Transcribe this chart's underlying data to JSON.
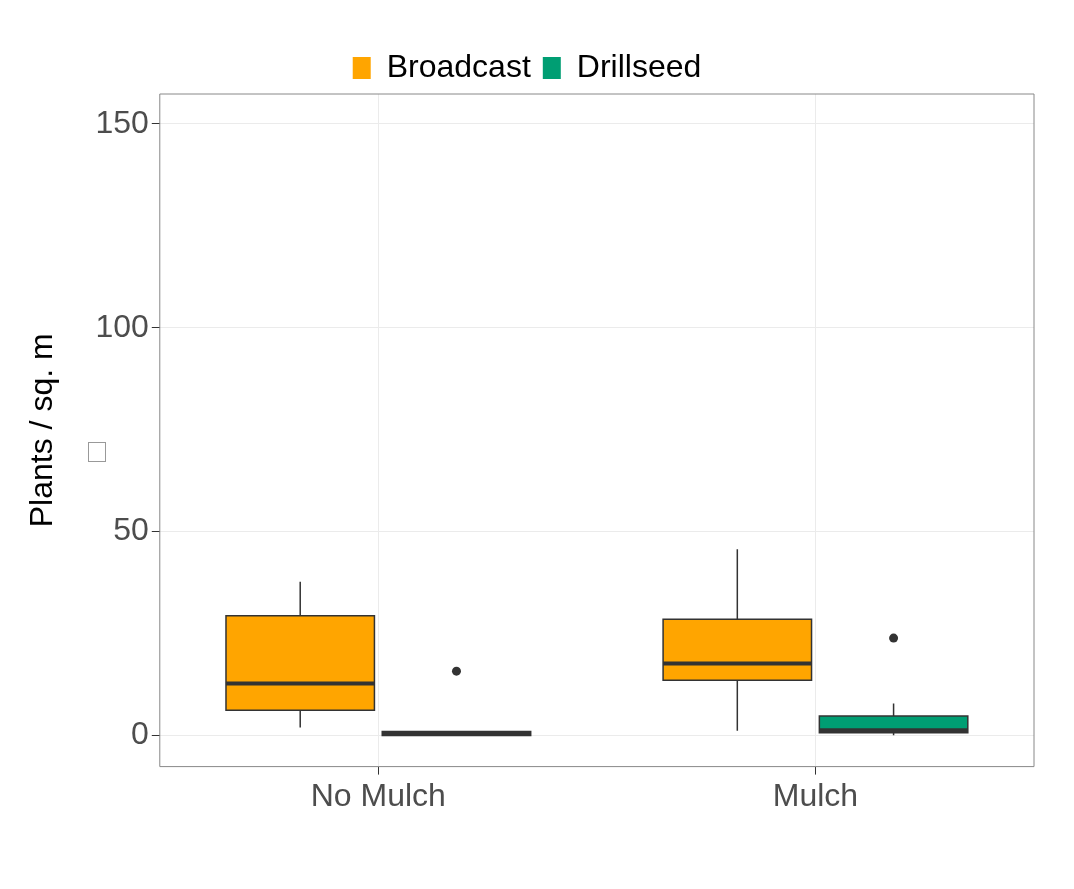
{
  "chart_data": {
    "type": "box",
    "ylabel": "Plants / sq. m",
    "categories": [
      "No Mulch",
      "Mulch"
    ],
    "series": [
      {
        "name": "Broadcast",
        "color": "#ffa500",
        "boxes": [
          {
            "low": 2,
            "q1": 6.2,
            "median": 12.8,
            "q3": 29.4,
            "high": 37.7
          },
          {
            "low": 1.2,
            "q1": 13.6,
            "median": 17.7,
            "q3": 28.5,
            "high": 45.7
          }
        ]
      },
      {
        "name": "Drillseed",
        "color": "#009e73",
        "boxes": [
          {
            "low": 0,
            "q1": 0,
            "median": 0.4,
            "q3": 1,
            "high": 1,
            "outliers": [
              15.8
            ]
          },
          {
            "low": 0.1,
            "q1": 0.7,
            "median": 1.3,
            "q3": 4.8,
            "high": 7.9,
            "outliers": [
              23.9
            ]
          }
        ]
      }
    ],
    "ylim": [
      -7.6,
      157.3
    ],
    "yticks": [
      0,
      50,
      100,
      150
    ],
    "grid": true,
    "legend": "top"
  }
}
